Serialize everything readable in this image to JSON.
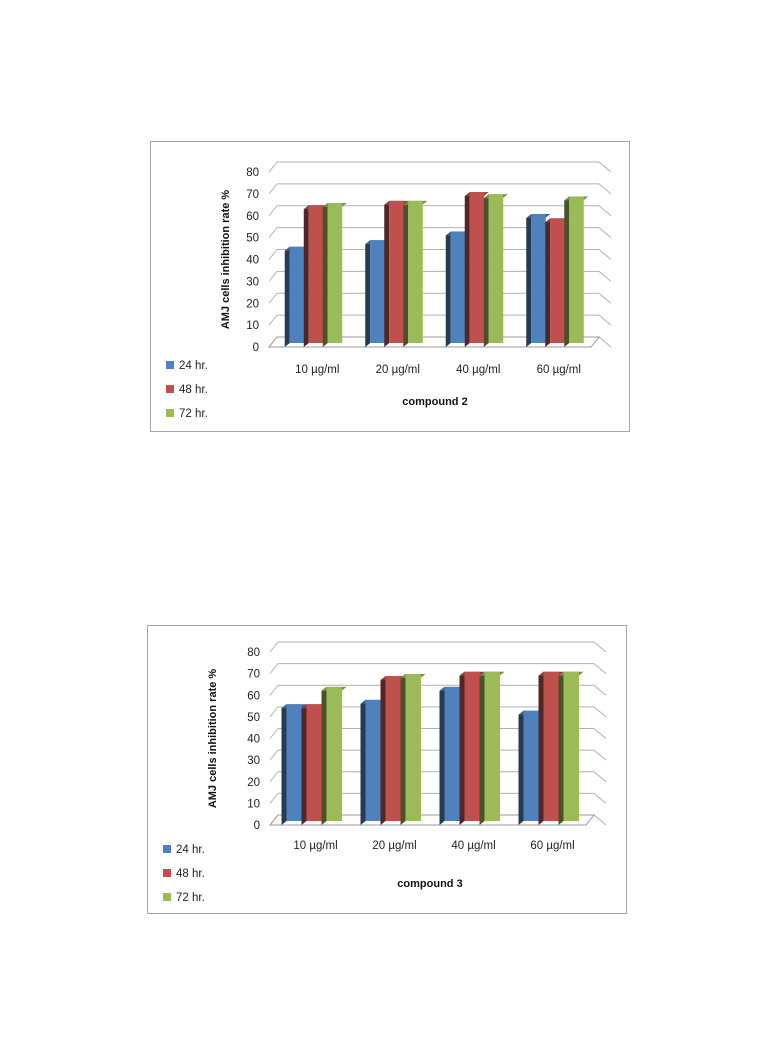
{
  "chart_data": [
    {
      "type": "bar",
      "categories": [
        "10 µg/ml",
        "20 µg/ml",
        "40 µg/ml",
        "60 µg/ml"
      ],
      "series": [
        {
          "name": "24 hr.",
          "values": [
            44,
            47,
            51,
            59
          ],
          "color": "#4f81bd"
        },
        {
          "name": "48 hr.",
          "values": [
            63,
            65,
            69,
            57
          ],
          "color": "#c0504d"
        },
        {
          "name": "72 hr.",
          "values": [
            64,
            65,
            68,
            67
          ],
          "color": "#9bbb59"
        }
      ],
      "title": "",
      "xlabel": "compound 2",
      "ylabel": "AMJ cells inhibition rate %",
      "ylim": [
        0,
        80
      ],
      "yticks": [
        0,
        10,
        20,
        30,
        40,
        50,
        60,
        70,
        80
      ],
      "grid": true,
      "three_d": true,
      "legend_position": "bottom-left"
    },
    {
      "type": "bar",
      "categories": [
        "10 µg/ml",
        "20 µg/ml",
        "40 µg/ml",
        "60 µg/ml"
      ],
      "series": [
        {
          "name": "24 hr.",
          "values": [
            54,
            56,
            62,
            51
          ],
          "color": "#4f81bd"
        },
        {
          "name": "48 hr.",
          "values": [
            54,
            67,
            69,
            69
          ],
          "color": "#c0504d"
        },
        {
          "name": "72 hr.",
          "values": [
            62,
            68,
            69,
            69
          ],
          "color": "#9bbb59"
        }
      ],
      "title": "",
      "xlabel": "compound 3",
      "ylabel": "AMJ cells inhibition rate %",
      "ylim": [
        0,
        80
      ],
      "yticks": [
        0,
        10,
        20,
        30,
        40,
        50,
        60,
        70,
        80
      ],
      "grid": true,
      "three_d": true,
      "legend_position": "bottom-left"
    }
  ]
}
